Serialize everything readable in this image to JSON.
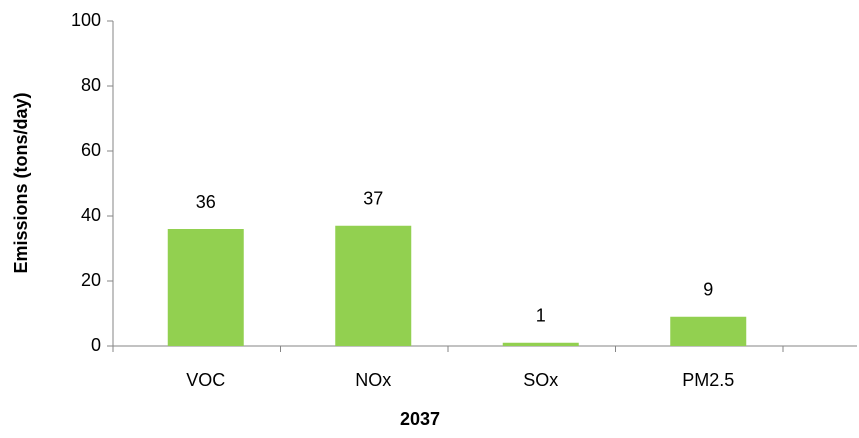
{
  "chart_data": {
    "type": "bar",
    "xlabel": "2037",
    "ylabel": "Emissions (tons/day)",
    "categories": [
      "VOC",
      "NOx",
      "SOx",
      "PM2.5"
    ],
    "values": [
      36,
      37,
      1,
      9
    ],
    "color": "#92d050",
    "ylim": [
      0,
      100
    ],
    "yticks": [
      0,
      20,
      40,
      60,
      80,
      100
    ],
    "grid": false
  }
}
